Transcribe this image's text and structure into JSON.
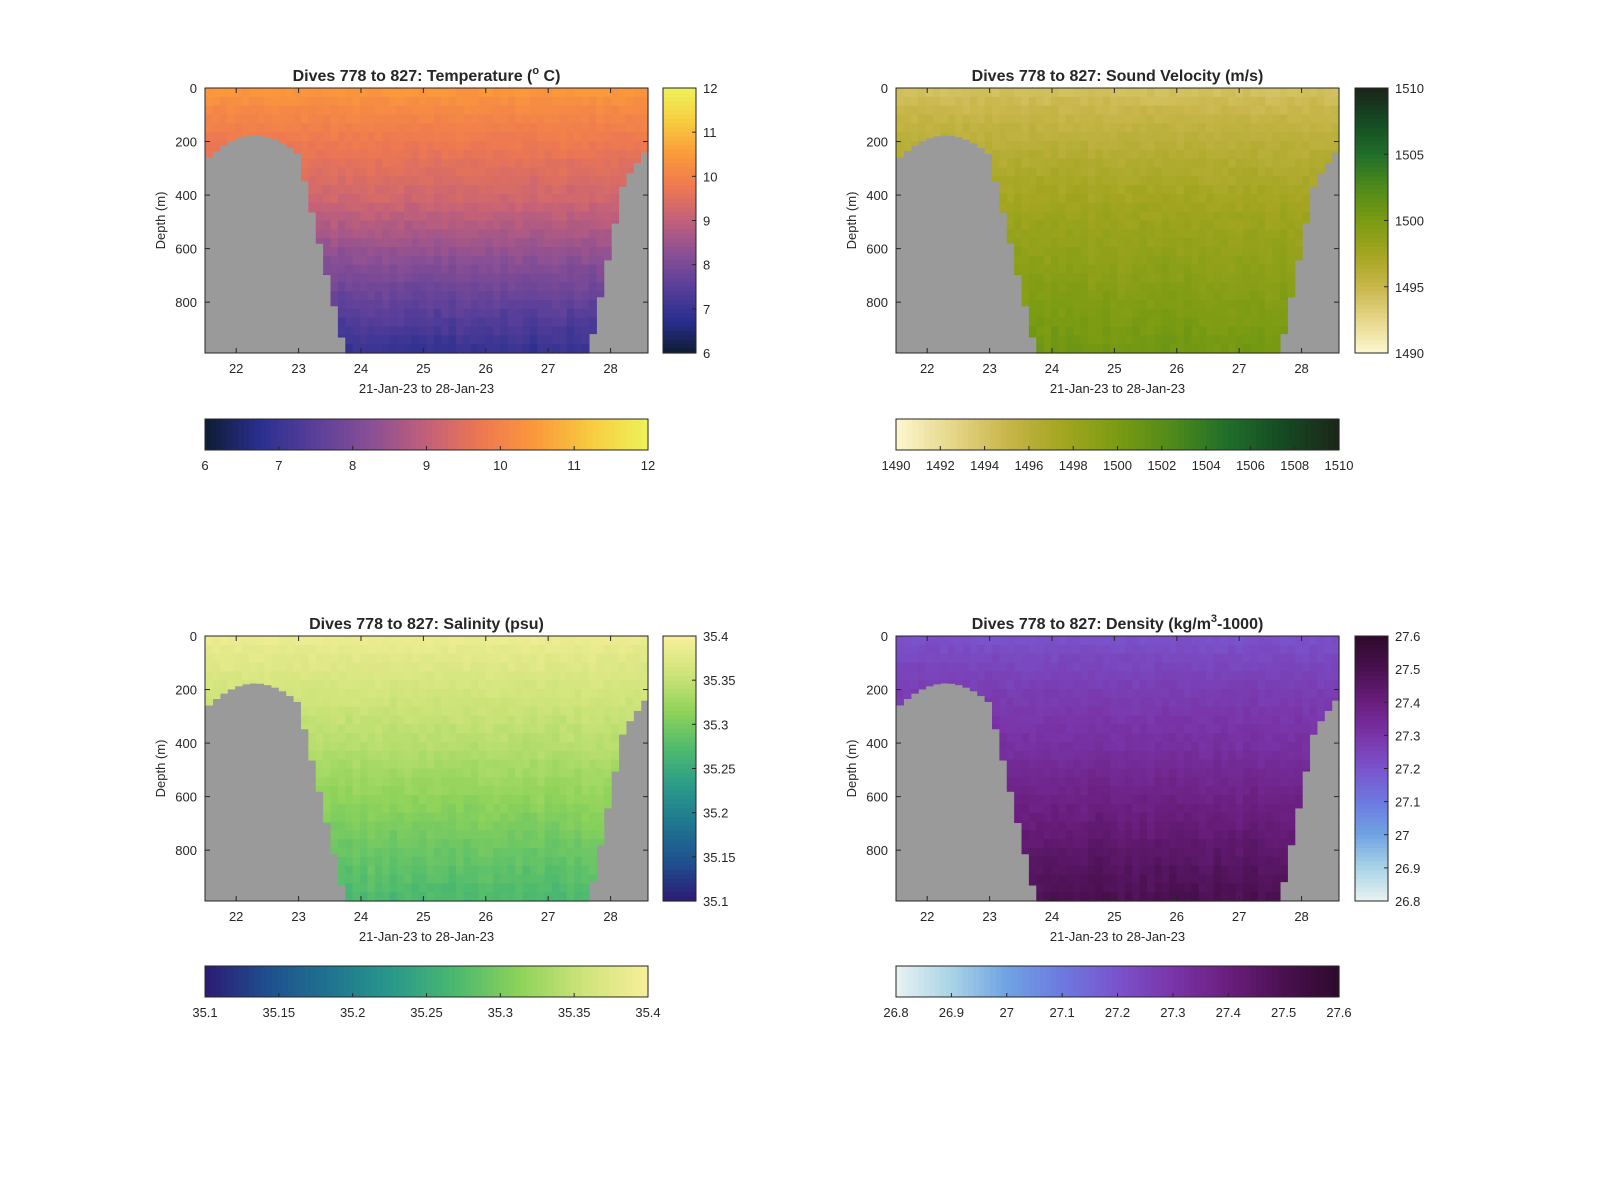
{
  "figure": {
    "background": "#ffffff",
    "land_color": "#9a9a9a"
  },
  "chart_data": [
    {
      "type": "heatmap",
      "id": "temperature",
      "title": "Dives 778 to 827: Temperature (",
      "title_degree": "o",
      "title_tail": " C)",
      "xlabel": "21-Jan-23 to 28-Jan-23",
      "ylabel": "Depth (m)",
      "xlim": [
        21.5,
        28.6
      ],
      "ylim": [
        0,
        990
      ],
      "x_ticks": [
        "22",
        "23",
        "24",
        "25",
        "26",
        "27",
        "28"
      ],
      "x_tick_values": [
        22,
        23,
        24,
        25,
        26,
        27,
        28
      ],
      "y_ticks": [
        "0",
        "200",
        "400",
        "600",
        "800"
      ],
      "y_tick_values": [
        0,
        200,
        400,
        600,
        800
      ],
      "colorbar": {
        "label_ticks": [
          "12",
          "11",
          "10",
          "9",
          "8",
          "7",
          "6"
        ],
        "horizontal_ticks": [
          "6",
          "7",
          "8",
          "9",
          "10",
          "11",
          "12"
        ],
        "range": [
          6,
          12
        ],
        "colormap": [
          "#0f1c33",
          "#2a2f8f",
          "#5a3f9a",
          "#8a4f95",
          "#c2607a",
          "#ee7851",
          "#fb9a3a",
          "#f7cd40",
          "#eef35a"
        ]
      },
      "profile": {
        "surface_value": 10.5,
        "bottom_value": 6.9,
        "mid_value": 9.2
      }
    },
    {
      "type": "heatmap",
      "id": "sound-velocity",
      "title": "Dives 778 to 827: Sound Velocity (m/s)",
      "xlabel": "21-Jan-23 to 28-Jan-23",
      "ylabel": "Depth (m)",
      "xlim": [
        21.5,
        28.6
      ],
      "ylim": [
        0,
        990
      ],
      "x_ticks": [
        "22",
        "23",
        "24",
        "25",
        "26",
        "27",
        "28"
      ],
      "x_tick_values": [
        22,
        23,
        24,
        25,
        26,
        27,
        28
      ],
      "y_ticks": [
        "0",
        "200",
        "400",
        "600",
        "800"
      ],
      "y_tick_values": [
        0,
        200,
        400,
        600,
        800
      ],
      "colorbar": {
        "label_ticks": [
          "1510",
          "1505",
          "1500",
          "1495",
          "1490"
        ],
        "horizontal_ticks": [
          "1490",
          "1492",
          "1494",
          "1496",
          "1498",
          "1500",
          "1502",
          "1504",
          "1506",
          "1508",
          "1510"
        ],
        "range": [
          1490,
          1510
        ],
        "colormap": [
          "#fdf7cf",
          "#e6d78a",
          "#c8b64a",
          "#a3a520",
          "#7a9b12",
          "#4f8a1a",
          "#1f6e2a",
          "#154a22",
          "#1b2519"
        ]
      },
      "profile": {
        "surface_value": 1494,
        "bottom_value": 1500.5,
        "mid_value": 1497.5
      }
    },
    {
      "type": "heatmap",
      "id": "salinity",
      "title": "Dives 778 to 827: Salinity (psu)",
      "xlabel": "21-Jan-23 to 28-Jan-23",
      "ylabel": "Depth (m)",
      "xlim": [
        21.5,
        28.6
      ],
      "ylim": [
        0,
        990
      ],
      "x_ticks": [
        "22",
        "23",
        "24",
        "25",
        "26",
        "27",
        "28"
      ],
      "x_tick_values": [
        22,
        23,
        24,
        25,
        26,
        27,
        28
      ],
      "y_ticks": [
        "0",
        "200",
        "400",
        "600",
        "800"
      ],
      "y_tick_values": [
        0,
        200,
        400,
        600,
        800
      ],
      "colorbar": {
        "label_ticks": [
          "35.4",
          "35.35",
          "35.3",
          "35.25",
          "35.2",
          "35.15",
          "35.1"
        ],
        "horizontal_ticks": [
          "35.1",
          "35.15",
          "35.2",
          "35.25",
          "35.3",
          "35.35",
          "35.4"
        ],
        "range": [
          35.1,
          35.4
        ],
        "colormap": [
          "#2c1b74",
          "#1f4f8e",
          "#1f7590",
          "#2a9a8a",
          "#4dba6e",
          "#8fd35a",
          "#cfe47a",
          "#f8ef9a"
        ]
      },
      "profile": {
        "surface_value": 35.39,
        "bottom_value": 35.27,
        "mid_value": 35.34
      }
    },
    {
      "type": "heatmap",
      "id": "density",
      "title": "Dives 778 to 827: Density (kg/m",
      "title_superscript": "3",
      "title_tail": "-1000)",
      "xlabel": "21-Jan-23 to 28-Jan-23",
      "ylabel": "Depth (m)",
      "xlim": [
        21.5,
        28.6
      ],
      "ylim": [
        0,
        990
      ],
      "x_ticks": [
        "22",
        "23",
        "24",
        "25",
        "26",
        "27",
        "28"
      ],
      "x_tick_values": [
        22,
        23,
        24,
        25,
        26,
        27,
        28
      ],
      "y_ticks": [
        "0",
        "200",
        "400",
        "600",
        "800"
      ],
      "y_tick_values": [
        0,
        200,
        400,
        600,
        800
      ],
      "colorbar": {
        "label_ticks": [
          "27.6",
          "27.5",
          "27.4",
          "27.3",
          "27.2",
          "27.1",
          "27",
          "26.9",
          "26.8"
        ],
        "horizontal_ticks": [
          "26.8",
          "26.9",
          "27",
          "27.1",
          "27.2",
          "27.3",
          "27.4",
          "27.5",
          "27.6"
        ],
        "range": [
          26.8,
          27.6
        ],
        "colormap": [
          "#e8f2f2",
          "#a9d3e6",
          "#6fa3e3",
          "#6d79e0",
          "#7a53cc",
          "#7a34a8",
          "#6a1e7e",
          "#4a1050",
          "#2d0a2b"
        ]
      },
      "profile": {
        "surface_value": 27.2,
        "bottom_value": 27.5,
        "mid_value": 27.32
      }
    }
  ]
}
